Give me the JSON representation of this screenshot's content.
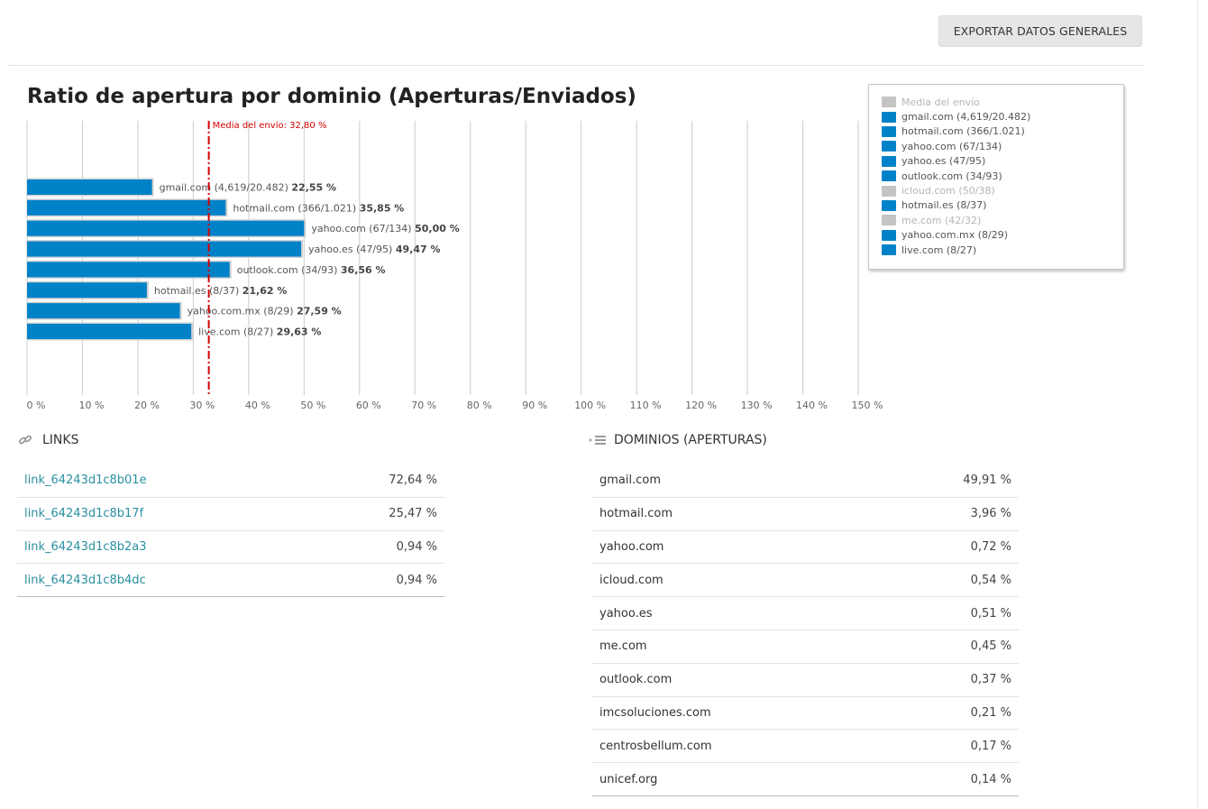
{
  "header": {
    "export_label": "EXPORTAR DATOS GENERALES"
  },
  "chart": {
    "title": "Ratio de apertura por dominio (Aperturas/Enviados)",
    "media_label": "Media del envío: 32,80 %"
  },
  "chart_data": {
    "type": "bar",
    "orientation": "horizontal",
    "title": "Ratio de apertura por dominio (Aperturas/Enviados)",
    "xlim": [
      0,
      150
    ],
    "x_ticks": [
      0,
      10,
      20,
      30,
      40,
      50,
      60,
      70,
      80,
      90,
      100,
      110,
      120,
      130,
      140,
      150
    ],
    "x_tick_labels": [
      "0 %",
      "10 %",
      "20 %",
      "30 %",
      "40 %",
      "50 %",
      "60 %",
      "70 %",
      "80 %",
      "90 %",
      "100 %",
      "110 %",
      "120 %",
      "130 %",
      "140 %",
      "150 %"
    ],
    "grid": true,
    "bar_color": "#0082c8",
    "reference_line": {
      "value": 32.8,
      "color": "#d40000",
      "label": "Media del envío: 32,80 %"
    },
    "categories": [
      "gmail.com (4,619/20.482)",
      "hotmail.com (366/1.021)",
      "yahoo.com (67/134)",
      "yahoo.es (47/95)",
      "outlook.com (34/93)",
      "hotmail.es (8/37)",
      "yahoo.com.mx (8/29)",
      "live.com (8/27)"
    ],
    "values": [
      22.55,
      35.85,
      50.0,
      49.47,
      36.56,
      21.62,
      27.59,
      29.63
    ],
    "value_labels": [
      "22,55 %",
      "35,85 %",
      "50,00 %",
      "49,47 %",
      "36,56 %",
      "21,62 %",
      "27,59 %",
      "29,63 %"
    ],
    "legend_placement": "top-right",
    "legend": [
      {
        "label": "Media del envío",
        "color": "#c4c4c4",
        "active": false
      },
      {
        "label": "gmail.com (4,619/20.482)",
        "color": "#0082c8",
        "active": true
      },
      {
        "label": "hotmail.com (366/1.021)",
        "color": "#0082c8",
        "active": true
      },
      {
        "label": "yahoo.com (67/134)",
        "color": "#0082c8",
        "active": true
      },
      {
        "label": "yahoo.es (47/95)",
        "color": "#0082c8",
        "active": true
      },
      {
        "label": "outlook.com (34/93)",
        "color": "#0082c8",
        "active": true
      },
      {
        "label": "icloud.com (50/38)",
        "color": "#c4c4c4",
        "active": false
      },
      {
        "label": "hotmail.es (8/37)",
        "color": "#0082c8",
        "active": true
      },
      {
        "label": "me.com (42/32)",
        "color": "#c4c4c4",
        "active": false
      },
      {
        "label": "yahoo.com.mx (8/29)",
        "color": "#0082c8",
        "active": true
      },
      {
        "label": "live.com (8/27)",
        "color": "#0082c8",
        "active": true
      }
    ]
  },
  "links": {
    "title": "LINKS",
    "icon": "link-icon",
    "rows": [
      {
        "name": "link_64243d1c8b01e",
        "value": "72,64 %"
      },
      {
        "name": "link_64243d1c8b17f",
        "value": "25,47 %"
      },
      {
        "name": "link_64243d1c8b2a3",
        "value": "0,94 %"
      },
      {
        "name": "link_64243d1c8b4dc",
        "value": "0,94 %"
      }
    ]
  },
  "domains": {
    "title": "DOMINIOS (APERTURAS)",
    "icon": "list-icon",
    "rows": [
      {
        "name": "gmail.com",
        "value": "49,91 %"
      },
      {
        "name": "hotmail.com",
        "value": "3,96 %"
      },
      {
        "name": "yahoo.com",
        "value": "0,72 %"
      },
      {
        "name": "icloud.com",
        "value": "0,54 %"
      },
      {
        "name": "yahoo.es",
        "value": "0,51 %"
      },
      {
        "name": "me.com",
        "value": "0,45 %"
      },
      {
        "name": "outlook.com",
        "value": "0,37 %"
      },
      {
        "name": "imcsoluciones.com",
        "value": "0,21 %"
      },
      {
        "name": "centrosbellum.com",
        "value": "0,17 %"
      },
      {
        "name": "unicef.org",
        "value": "0,14 %"
      }
    ]
  }
}
